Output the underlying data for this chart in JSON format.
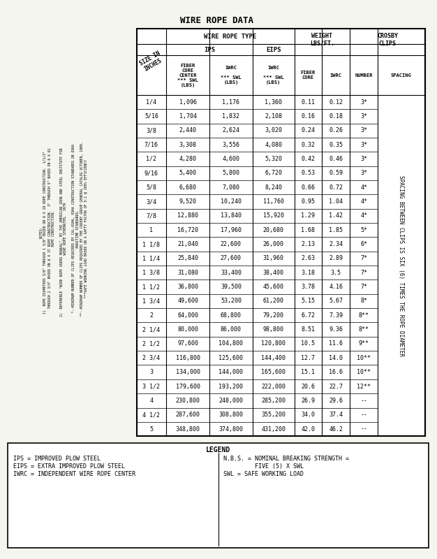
{
  "title": "WIRE ROPE DATA",
  "header_row1": [
    "SIZE IN\nINCHES",
    "WIRE ROPE TYPE",
    "",
    "",
    "WEIGHT\nLBS/FT.",
    "",
    "CROSBY\nCLIPS"
  ],
  "header_row2": [
    "",
    "IPS",
    "",
    "EIPS",
    "",
    "",
    ""
  ],
  "header_row3": [
    "",
    "FIBER\nCORE\nCENTER\n*** SWL\n(LBS)",
    "IWRC\n\n*** SWL\n(LBS)",
    "IWRC\n\n*** SWL\n(LBS)",
    "FIBER\nCORE",
    "IWRC",
    "NUMBER",
    "SPACING"
  ],
  "rows": [
    [
      "1/4",
      "1,096",
      "1,176",
      "1,360",
      "0.11",
      "0.12",
      "3*",
      ""
    ],
    [
      "5/16",
      "1,704",
      "1,832",
      "2,108",
      "0.16",
      "0.18",
      "3*",
      ""
    ],
    [
      "3/8",
      "2,440",
      "2,624",
      "3,020",
      "0.24",
      "0.26",
      "3*",
      ""
    ],
    [
      "7/16",
      "3,308",
      "3,556",
      "4,080",
      "0.32",
      "0.35",
      "3*",
      ""
    ],
    [
      "1/2",
      "4,280",
      "4,600",
      "5,320",
      "0.42",
      "0.46",
      "3*",
      ""
    ],
    [
      "9/16",
      "5,400",
      "5,800",
      "6,720",
      "0.53",
      "0.59",
      "3*",
      ""
    ],
    [
      "5/8",
      "6,680",
      "7,080",
      "8,240",
      "0.66",
      "0.72",
      "4*",
      ""
    ],
    [
      "3/4",
      "9,520",
      "10,240",
      "11,760",
      "0.95",
      "1.04",
      "4*",
      ""
    ],
    [
      "7/8",
      "12,880",
      "13,840",
      "15,920",
      "1.29",
      "1.42",
      "4*",
      ""
    ],
    [
      "1",
      "16,720",
      "17,960",
      "20,680",
      "1.68",
      "1.85",
      "5*",
      ""
    ],
    [
      "1 1/8",
      "21,040",
      "22,600",
      "26,000",
      "2.13",
      "2.34",
      "6*",
      ""
    ],
    [
      "1 1/4",
      "25,840",
      "27,600",
      "31,960",
      "2.63",
      "2.89",
      "7*",
      ""
    ],
    [
      "1 3/8",
      "31,080",
      "33,400",
      "38,400",
      "3.18",
      "3.5",
      "7*",
      ""
    ],
    [
      "1 1/2",
      "36,800",
      "39,500",
      "45,600",
      "3.78",
      "4.16",
      "7*",
      ""
    ],
    [
      "1 3/4",
      "49,600",
      "53,200",
      "61,200",
      "5.15",
      "5.67",
      "8*",
      ""
    ],
    [
      "2",
      "64,000",
      "68,800",
      "79,200",
      "6.72",
      "7.39",
      "8**",
      ""
    ],
    [
      "2 1/4",
      "80,000",
      "86,000",
      "98,800",
      "8.51",
      "9.36",
      "8**",
      ""
    ],
    [
      "2 1/2",
      "97,600",
      "104,800",
      "120,800",
      "10.5",
      "11.6",
      "9**",
      ""
    ],
    [
      "2 3/4",
      "116,800",
      "125,600",
      "144,400",
      "12.7",
      "14.0",
      "10**",
      ""
    ],
    [
      "3",
      "134,000",
      "144,000",
      "165,600",
      "15.1",
      "16.6",
      "10**",
      ""
    ],
    [
      "3 1/2",
      "179,600",
      "193,200",
      "222,000",
      "20.6",
      "22.7",
      "12**",
      ""
    ],
    [
      "4",
      "230,800",
      "248,000",
      "285,200",
      "26.9",
      "29.6",
      "--",
      ""
    ],
    [
      "4 1/2",
      "287,600",
      "308,800",
      "355,200",
      "34.0",
      "37.4",
      "--",
      ""
    ],
    [
      "5",
      "348,800",
      "374,800",
      "431,200",
      "42.0",
      "46.2",
      "--",
      ""
    ]
  ],
  "notes": [
    "NOTES:",
    "1)  ROPE DIAMETERS 3/8\" THROUGH 1 3/8\" BASED ON 6 X 19 ROPE CONSTRUCTION.  1/1/2\"",
    "    THROUGH 2 3/4\" BASED ON 6 X 37 ROPE CONSTRUCTION.  3\" THROUGH 5\" BASED ON 6 X 61",
    "    ROPE CONSTRUCTION.",
    "",
    "2)  REFERENCE \"WIRE ROPE USERS MANUAL\", BY THE AMERICAN IRON AND STEEL INSTITUTE FOR",
    "    WIRE ROPE STRENGTHS.  1979",
    "",
    "    *--MINIMUM NUMBER OF CLIPS REQUIRED BY CAL-OSHA, OSHA CONSTRUCTION STANDARDS OR OSHA",
    "    MARITIME STANDARDS.",
    "    **--MINIMUM NUMBER OF CLIPS REQUIRED BY THE CROSBY GROUP GENERAL CATALOG OCTOBER, 1980.",
    "    ***SAFE WORKING LOAD BASED ON A SAFTY FACTOR OF 5:1 @ 100% EFFICIENCY"
  ],
  "legend_left": [
    "IPS = IMPROVED PLOW STEEL",
    "EIPS = EXTRA IMPROVED PLOW STEEL",
    "IWRC = INDEPENDENT WIRE ROPE CENTER"
  ],
  "legend_right": [
    "N.B.S. = NOMINAL BREAKING STRENGTH =",
    "         FIVE (5) X SWL",
    "SWL = SAFE WORKING LOAD"
  ],
  "side_label": "SPACING BETWEEN CLIPS IS SIX (6) TIMES THE ROPE DIAMETER",
  "bg_color": "#f5f5f0",
  "border_color": "#000000",
  "font_size": 6.5
}
